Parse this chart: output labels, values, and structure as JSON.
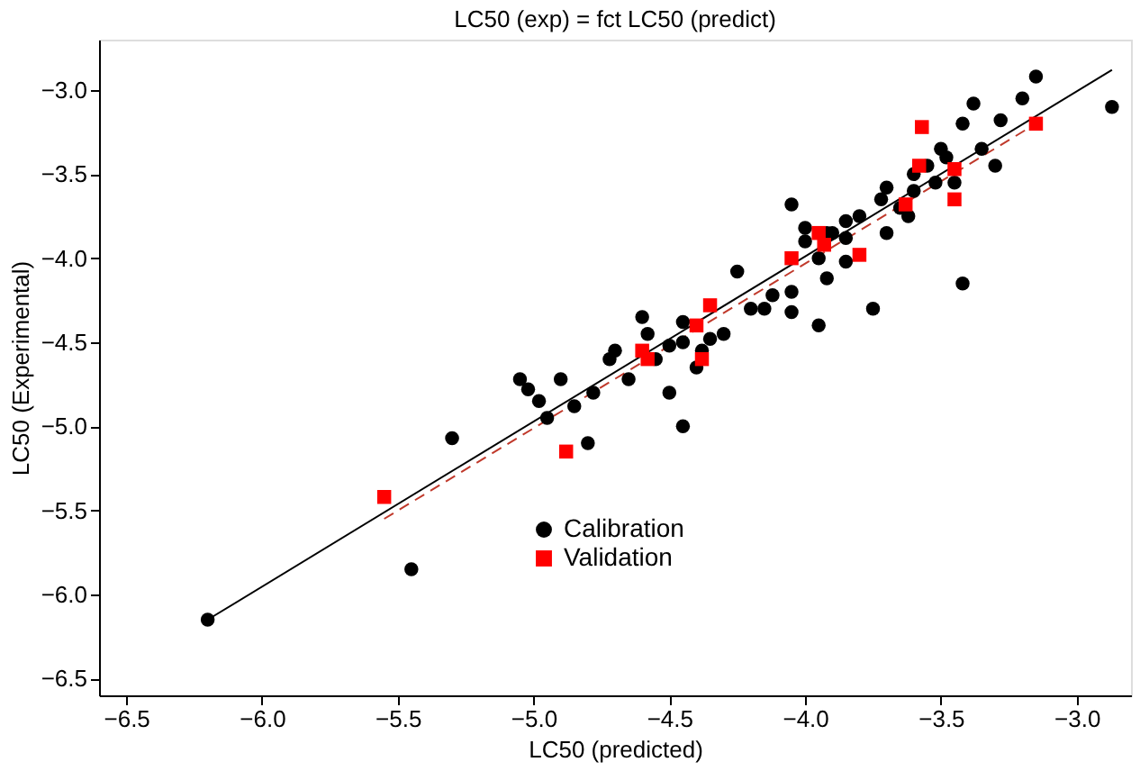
{
  "chart_data": {
    "type": "scatter",
    "title": "LC50 (exp) = fct LC50 (predict)",
    "xlabel": "LC50 (predicted)",
    "ylabel": "LC50 (Experimental)",
    "xlim": [
      -6.6,
      -2.8
    ],
    "ylim": [
      -6.6,
      -2.7
    ],
    "xticks": [
      {
        "value": -6.5,
        "label": "−6.5"
      },
      {
        "value": -6.0,
        "label": "−6.0"
      },
      {
        "value": -5.5,
        "label": "−5.5"
      },
      {
        "value": -5.0,
        "label": "−5.0"
      },
      {
        "value": -4.5,
        "label": "−4.5"
      },
      {
        "value": -4.0,
        "label": "−4.0"
      },
      {
        "value": -3.5,
        "label": "−3.5"
      },
      {
        "value": -3.0,
        "label": "−3.0"
      }
    ],
    "yticks": [
      {
        "value": -6.5,
        "label": "−6.5"
      },
      {
        "value": -6.0,
        "label": "−6.0"
      },
      {
        "value": -5.5,
        "label": "−5.5"
      },
      {
        "value": -5.0,
        "label": "−5.0"
      },
      {
        "value": -4.5,
        "label": "−4.5"
      },
      {
        "value": -4.0,
        "label": "−4.0"
      },
      {
        "value": -3.5,
        "label": "−3.5"
      },
      {
        "value": -3.0,
        "label": "−3.0"
      }
    ],
    "grid": false,
    "legend": "bottom",
    "series": [
      {
        "name": "Calibration",
        "color": "#000000",
        "marker": "circle",
        "x": [
          -6.2,
          -5.45,
          -5.3,
          -5.05,
          -5.02,
          -4.98,
          -4.95,
          -4.9,
          -4.85,
          -4.8,
          -4.78,
          -4.72,
          -4.7,
          -4.65,
          -4.58,
          -4.6,
          -4.55,
          -4.5,
          -4.5,
          -4.45,
          -4.45,
          -4.4,
          -4.45,
          -4.38,
          -4.35,
          -4.3,
          -4.25,
          -4.2,
          -4.15,
          -4.12,
          -4.05,
          -4.05,
          -4.0,
          -4.05,
          -4.0,
          -3.95,
          -3.92,
          -3.9,
          -3.85,
          -3.85,
          -3.8,
          -3.75,
          -3.72,
          -3.7,
          -3.7,
          -3.65,
          -3.62,
          -3.6,
          -3.55,
          -3.52,
          -3.5,
          -3.48,
          -3.45,
          -3.42,
          -3.42,
          -3.38,
          -3.35,
          -3.3,
          -3.28,
          -3.2,
          -3.15,
          -2.87,
          -3.92,
          -3.95,
          -3.6,
          -3.85
        ],
        "values": [
          -6.15,
          -5.85,
          -5.07,
          -4.72,
          -4.78,
          -4.85,
          -4.95,
          -4.72,
          -4.88,
          -5.1,
          -4.8,
          -4.6,
          -4.55,
          -4.72,
          -4.45,
          -4.35,
          -4.6,
          -4.8,
          -4.52,
          -4.5,
          -4.38,
          -4.65,
          -5.0,
          -4.55,
          -4.48,
          -4.45,
          -4.08,
          -4.3,
          -4.3,
          -4.22,
          -4.2,
          -3.68,
          -3.82,
          -4.32,
          -3.9,
          -4.0,
          -4.12,
          -3.85,
          -4.02,
          -3.78,
          -3.75,
          -4.3,
          -3.65,
          -3.58,
          -3.85,
          -3.7,
          -3.75,
          -3.6,
          -3.45,
          -3.55,
          -3.35,
          -3.4,
          -3.55,
          -3.2,
          -4.15,
          -3.08,
          -3.35,
          -3.45,
          -3.18,
          -3.05,
          -2.92,
          -3.1,
          -3.85,
          -4.4,
          -3.5,
          -3.88
        ]
      },
      {
        "name": "Validation",
        "color": "#ff0000",
        "marker": "square",
        "x": [
          -5.55,
          -4.88,
          -4.6,
          -4.58,
          -4.4,
          -4.38,
          -4.35,
          -4.05,
          -3.95,
          -3.93,
          -3.8,
          -3.63,
          -3.58,
          -3.57,
          -3.45,
          -3.45,
          -3.15
        ],
        "values": [
          -5.42,
          -5.15,
          -4.55,
          -4.6,
          -4.4,
          -4.6,
          -4.28,
          -4.0,
          -3.85,
          -3.92,
          -3.98,
          -3.68,
          -3.45,
          -3.22,
          -3.47,
          -3.65,
          -3.2
        ]
      },
      {
        "type": "line",
        "color": "#000000",
        "line_style": "solid",
        "x": [
          -6.2,
          -2.87
        ],
        "values": [
          -6.15,
          -2.88
        ]
      },
      {
        "type": "line",
        "color": "#c0392b",
        "line_style": "dashed",
        "x": [
          -5.55,
          -3.15
        ],
        "values": [
          -5.55,
          -3.2
        ]
      }
    ]
  }
}
